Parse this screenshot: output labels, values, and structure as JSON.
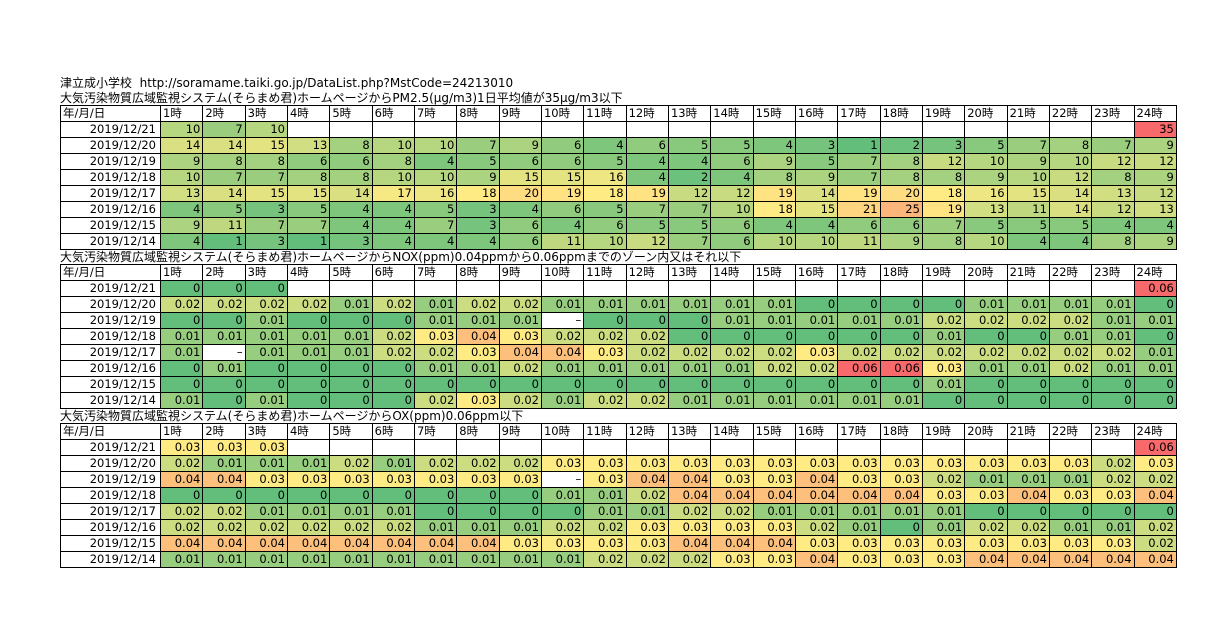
{
  "header": {
    "school": "津立成小学校",
    "url": "http://soramame.taiki.go.jp/DataList.php?MstCode=24213010"
  },
  "tables": [
    {
      "title": "大気汚染物質広域監視システム(そらまめ君)ホームページからPM2.5(μg/m3)1日平均値が35μg/m3以下",
      "corner": "年/月/日",
      "hours": [
        "1時",
        "2時",
        "3時",
        "4時",
        "5時",
        "6時",
        "7時",
        "8時",
        "9時",
        "10時",
        "11時",
        "12時",
        "13時",
        "14時",
        "15時",
        "16時",
        "17時",
        "18時",
        "19時",
        "20時",
        "21時",
        "22時",
        "23時",
        "24時"
      ],
      "rows": [
        {
          "date": "2019/12/21",
          "values": [
            "10",
            "7",
            "10",
            "",
            "",
            "",
            "",
            "",
            "",
            "",
            "",
            "",
            "",
            "",
            "",
            "",
            "",
            "",
            "",
            "",
            "",
            "",
            "",
            "35"
          ]
        },
        {
          "date": "2019/12/20",
          "values": [
            "14",
            "14",
            "15",
            "13",
            "8",
            "10",
            "10",
            "7",
            "9",
            "6",
            "4",
            "6",
            "5",
            "5",
            "4",
            "3",
            "1",
            "2",
            "3",
            "5",
            "7",
            "8",
            "7",
            "9"
          ]
        },
        {
          "date": "2019/12/19",
          "values": [
            "9",
            "8",
            "8",
            "6",
            "6",
            "8",
            "4",
            "5",
            "6",
            "6",
            "5",
            "4",
            "4",
            "6",
            "9",
            "5",
            "7",
            "8",
            "12",
            "10",
            "9",
            "10",
            "12",
            "12"
          ]
        },
        {
          "date": "2019/12/18",
          "values": [
            "10",
            "7",
            "7",
            "8",
            "8",
            "10",
            "10",
            "9",
            "15",
            "15",
            "16",
            "4",
            "2",
            "4",
            "8",
            "9",
            "7",
            "8",
            "8",
            "9",
            "10",
            "12",
            "8",
            "9"
          ]
        },
        {
          "date": "2019/12/17",
          "values": [
            "13",
            "14",
            "15",
            "15",
            "14",
            "17",
            "16",
            "18",
            "20",
            "19",
            "18",
            "19",
            "12",
            "12",
            "19",
            "14",
            "19",
            "20",
            "18",
            "16",
            "15",
            "14",
            "13",
            "12"
          ]
        },
        {
          "date": "2019/12/16",
          "values": [
            "4",
            "5",
            "3",
            "5",
            "4",
            "4",
            "5",
            "3",
            "4",
            "6",
            "5",
            "7",
            "7",
            "10",
            "18",
            "15",
            "21",
            "25",
            "19",
            "13",
            "11",
            "14",
            "12",
            "13"
          ]
        },
        {
          "date": "2019/12/15",
          "values": [
            "9",
            "11",
            "7",
            "7",
            "4",
            "4",
            "7",
            "3",
            "6",
            "4",
            "6",
            "5",
            "5",
            "6",
            "4",
            "4",
            "6",
            "6",
            "7",
            "5",
            "5",
            "5",
            "4",
            "4"
          ]
        },
        {
          "date": "2019/12/14",
          "values": [
            "4",
            "1",
            "3",
            "1",
            "3",
            "4",
            "4",
            "4",
            "6",
            "11",
            "10",
            "12",
            "7",
            "6",
            "10",
            "10",
            "11",
            "9",
            "8",
            "10",
            "4",
            "4",
            "8",
            "9"
          ]
        }
      ]
    },
    {
      "title": "大気汚染物質広域監視システム(そらまめ君)ホームページからNOX(ppm)0.04ppmから0.06ppmまでのゾーン内又はそれ以下",
      "corner": "年/月/日",
      "hours": [
        "1時",
        "2時",
        "3時",
        "4時",
        "5時",
        "6時",
        "7時",
        "8時",
        "9時",
        "10時",
        "11時",
        "12時",
        "13時",
        "14時",
        "15時",
        "16時",
        "17時",
        "18時",
        "19時",
        "20時",
        "21時",
        "22時",
        "23時",
        "24時"
      ],
      "rows": [
        {
          "date": "2019/12/21",
          "values": [
            "0",
            "0",
            "0",
            "",
            "",
            "",
            "",
            "",
            "",
            "",
            "",
            "",
            "",
            "",
            "",
            "",
            "",
            "",
            "",
            "",
            "",
            "",
            "",
            "0.06"
          ]
        },
        {
          "date": "2019/12/20",
          "values": [
            "0.02",
            "0.02",
            "0.02",
            "0.02",
            "0.01",
            "0.02",
            "0.01",
            "0.02",
            "0.02",
            "0.01",
            "0.01",
            "0.01",
            "0.01",
            "0.01",
            "0.01",
            "0",
            "0",
            "0",
            "0",
            "0.01",
            "0.01",
            "0.01",
            "0.01",
            "0"
          ]
        },
        {
          "date": "2019/12/19",
          "values": [
            "0",
            "0",
            "0.01",
            "0",
            "0",
            "0",
            "0.01",
            "0.01",
            "0.01",
            "–",
            "0",
            "0",
            "0",
            "0.01",
            "0.01",
            "0.01",
            "0.01",
            "0.01",
            "0.02",
            "0.02",
            "0.02",
            "0.02",
            "0.01",
            "0.01"
          ]
        },
        {
          "date": "2019/12/18",
          "values": [
            "0.01",
            "0.01",
            "0.01",
            "0.01",
            "0.01",
            "0.02",
            "0.03",
            "0.04",
            "0.03",
            "0.02",
            "0.02",
            "0.02",
            "0",
            "0",
            "0",
            "0",
            "0",
            "0",
            "0.01",
            "0",
            "0",
            "0.01",
            "0.01",
            "0"
          ]
        },
        {
          "date": "2019/12/17",
          "values": [
            "0.01",
            "–",
            "0.01",
            "0.01",
            "0.01",
            "0.02",
            "0.02",
            "0.03",
            "0.04",
            "0.04",
            "0.03",
            "0.02",
            "0.02",
            "0.02",
            "0.02",
            "0.03",
            "0.02",
            "0.02",
            "0.02",
            "0.02",
            "0.02",
            "0.02",
            "0.02",
            "0.01"
          ]
        },
        {
          "date": "2019/12/16",
          "values": [
            "0",
            "0.01",
            "0",
            "0",
            "0",
            "0",
            "0.01",
            "0.01",
            "0.02",
            "0.01",
            "0.01",
            "0.01",
            "0.01",
            "0.01",
            "0.02",
            "0.02",
            "0.06",
            "0.06",
            "0.03",
            "0.01",
            "0.01",
            "0.02",
            "0.01",
            "0.01"
          ]
        },
        {
          "date": "2019/12/15",
          "values": [
            "0",
            "0",
            "0",
            "0",
            "0",
            "0",
            "0",
            "0",
            "0",
            "0",
            "0",
            "0",
            "0",
            "0",
            "0",
            "0",
            "0",
            "0",
            "0.01",
            "0",
            "0",
            "0",
            "0",
            "0"
          ]
        },
        {
          "date": "2019/12/14",
          "values": [
            "0.01",
            "0",
            "0.01",
            "0",
            "0",
            "0",
            "0.02",
            "0.03",
            "0.02",
            "0.01",
            "0.02",
            "0.02",
            "0.01",
            "0.01",
            "0.01",
            "0.01",
            "0.01",
            "0.01",
            "0",
            "0",
            "0",
            "0",
            "0",
            "0"
          ]
        }
      ]
    },
    {
      "title": "大気汚染物質広域監視システム(そらまめ君)ホームページからOX(ppm)0.06ppm以下",
      "corner": "年/月/日",
      "hours": [
        "1時",
        "2時",
        "3時",
        "4時",
        "5時",
        "6時",
        "7時",
        "8時",
        "9時",
        "10時",
        "11時",
        "12時",
        "13時",
        "14時",
        "15時",
        "16時",
        "17時",
        "18時",
        "19時",
        "20時",
        "21時",
        "22時",
        "23時",
        "24時"
      ],
      "rows": [
        {
          "date": "2019/12/21",
          "values": [
            "0.03",
            "0.03",
            "0.03",
            "",
            "",
            "",
            "",
            "",
            "",
            "",
            "",
            "",
            "",
            "",
            "",
            "",
            "",
            "",
            "",
            "",
            "",
            "",
            "",
            "0.06"
          ]
        },
        {
          "date": "2019/12/20",
          "values": [
            "0.02",
            "0.01",
            "0.01",
            "0.01",
            "0.02",
            "0.01",
            "0.02",
            "0.02",
            "0.02",
            "0.03",
            "0.03",
            "0.03",
            "0.03",
            "0.03",
            "0.03",
            "0.03",
            "0.03",
            "0.03",
            "0.03",
            "0.03",
            "0.03",
            "0.03",
            "0.02",
            "0.03"
          ]
        },
        {
          "date": "2019/12/19",
          "values": [
            "0.04",
            "0.04",
            "0.03",
            "0.03",
            "0.03",
            "0.03",
            "0.03",
            "0.03",
            "0.03",
            "–",
            "0.03",
            "0.04",
            "0.04",
            "0.03",
            "0.03",
            "0.04",
            "0.03",
            "0.03",
            "0.02",
            "0.01",
            "0.01",
            "0.01",
            "0.02",
            "0.02"
          ]
        },
        {
          "date": "2019/12/18",
          "values": [
            "0",
            "0",
            "0",
            "0",
            "0",
            "0",
            "0",
            "0",
            "0",
            "0.01",
            "0.01",
            "0.02",
            "0.04",
            "0.04",
            "0.04",
            "0.04",
            "0.04",
            "0.04",
            "0.03",
            "0.03",
            "0.04",
            "0.03",
            "0.03",
            "0.04"
          ]
        },
        {
          "date": "2019/12/17",
          "values": [
            "0.02",
            "0.02",
            "0.01",
            "0.01",
            "0.01",
            "0.01",
            "0",
            "0",
            "0",
            "0",
            "0.01",
            "0.01",
            "0.02",
            "0.02",
            "0.01",
            "0.01",
            "0.01",
            "0.01",
            "0.01",
            "0",
            "0",
            "0",
            "0",
            "0"
          ]
        },
        {
          "date": "2019/12/16",
          "values": [
            "0.02",
            "0.02",
            "0.02",
            "0.02",
            "0.02",
            "0.02",
            "0.01",
            "0.01",
            "0.01",
            "0.02",
            "0.02",
            "0.03",
            "0.03",
            "0.03",
            "0.03",
            "0.02",
            "0.01",
            "0",
            "0.01",
            "0.02",
            "0.02",
            "0.01",
            "0.01",
            "0.02"
          ]
        },
        {
          "date": "2019/12/15",
          "values": [
            "0.04",
            "0.04",
            "0.04",
            "0.04",
            "0.04",
            "0.04",
            "0.04",
            "0.04",
            "0.03",
            "0.03",
            "0.03",
            "0.03",
            "0.04",
            "0.04",
            "0.04",
            "0.03",
            "0.03",
            "0.03",
            "0.03",
            "0.03",
            "0.03",
            "0.03",
            "0.03",
            "0.02"
          ]
        },
        {
          "date": "2019/12/14",
          "values": [
            "0.01",
            "0.01",
            "0.01",
            "0.01",
            "0.01",
            "0.01",
            "0.01",
            "0.01",
            "0.01",
            "0.01",
            "0.02",
            "0.02",
            "0.02",
            "0.03",
            "0.03",
            "0.04",
            "0.03",
            "0.03",
            "0.03",
            "0.04",
            "0.04",
            "0.04",
            "0.04",
            "0.04"
          ]
        }
      ]
    }
  ]
}
